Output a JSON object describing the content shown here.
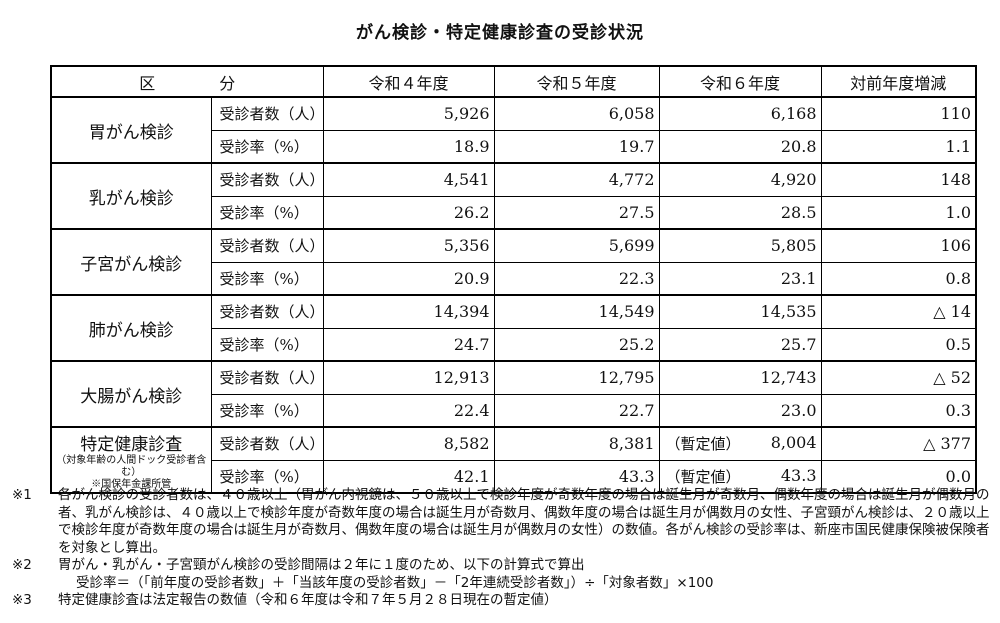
{
  "title": "がん検診・特定健康診査の受診状況",
  "table": {
    "headers": [
      "区　　　　分",
      "令和４年度",
      "令和５年度",
      "令和６年度",
      "対前年度増減"
    ],
    "groups": [
      {
        "name": "胃がん検診",
        "rows": [
          {
            "item": "受診者数（人）",
            "r4": "5,926",
            "r5": "6,058",
            "r6": "6,168",
            "diff": "110"
          },
          {
            "item": "受診率（%）",
            "r4": "18.9",
            "r5": "19.7",
            "r6": "20.8",
            "diff": "1.1"
          }
        ]
      },
      {
        "name": "乳がん検診",
        "rows": [
          {
            "item": "受診者数（人）",
            "r4": "4,541",
            "r5": "4,772",
            "r6": "4,920",
            "diff": "148"
          },
          {
            "item": "受診率（%）",
            "r4": "26.2",
            "r5": "27.5",
            "r6": "28.5",
            "diff": "1.0"
          }
        ]
      },
      {
        "name": "子宮がん検診",
        "rows": [
          {
            "item": "受診者数（人）",
            "r4": "5,356",
            "r5": "5,699",
            "r6": "5,805",
            "diff": "106"
          },
          {
            "item": "受診率（%）",
            "r4": "20.9",
            "r5": "22.3",
            "r6": "23.1",
            "diff": "0.8"
          }
        ]
      },
      {
        "name": "肺がん検診",
        "rows": [
          {
            "item": "受診者数（人）",
            "r4": "14,394",
            "r5": "14,549",
            "r6": "14,535",
            "diff": "△ 14"
          },
          {
            "item": "受診率（%）",
            "r4": "24.7",
            "r5": "25.2",
            "r6": "25.7",
            "diff": "0.5"
          }
        ]
      },
      {
        "name": "大腸がん検診",
        "rows": [
          {
            "item": "受診者数（人）",
            "r4": "12,913",
            "r5": "12,795",
            "r6": "12,743",
            "diff": "△ 52"
          },
          {
            "item": "受診率（%）",
            "r4": "22.4",
            "r5": "22.7",
            "r6": "23.0",
            "diff": "0.3"
          }
        ]
      },
      {
        "name": "特定健康診査",
        "sub1": "（対象年齢の人間ドック受診者含む）",
        "sub2": "※国保年金課所管",
        "rows": [
          {
            "item": "受診者数（人）",
            "r4": "8,582",
            "r5": "8,381",
            "r6_prefix": "（暫定値）",
            "r6": "8,004",
            "diff": "△ 377"
          },
          {
            "item": "受診率（%）",
            "r4": "42.1",
            "r5": "43.3",
            "r6_prefix": "（暫定値）",
            "r6": "43.3",
            "diff": "0.0"
          }
        ]
      }
    ]
  },
  "notes": [
    {
      "mark": "※1",
      "text": "各がん検診の受診者数は、４０歳以上（胃がん内視鏡は、５０歳以上で検診年度が奇数年度の場合は誕生月が奇数月、偶数年度の場合は誕生月が偶数月の者、乳がん検診は、４０歳以上で検診年度が奇数年度の場合は誕生月が奇数月、偶数年度の場合は誕生月が偶数月の女性、子宮頸がん検診は、２０歳以上で検診年度が奇数年度の場合は誕生月が奇数月、偶数年度の場合は誕生月が偶数月の女性）の数値。各がん検診の受診率は、新座市国民健康保険被保険者を対象とし算出。"
    },
    {
      "mark": "※2",
      "text": "胃がん・乳がん・子宮頸がん検診の受診間隔は２年に１度のため、以下の計算式で算出"
    },
    {
      "mark": "※3",
      "text": "特定健康診査は法定報告の数値（令和６年度は令和７年５月２８日現在の暫定値）"
    }
  ],
  "formula": "受診率＝（「前年度の受診者数」＋「当該年度の受診者数」－「2年連続受診者数」）÷「対象者数」×100"
}
